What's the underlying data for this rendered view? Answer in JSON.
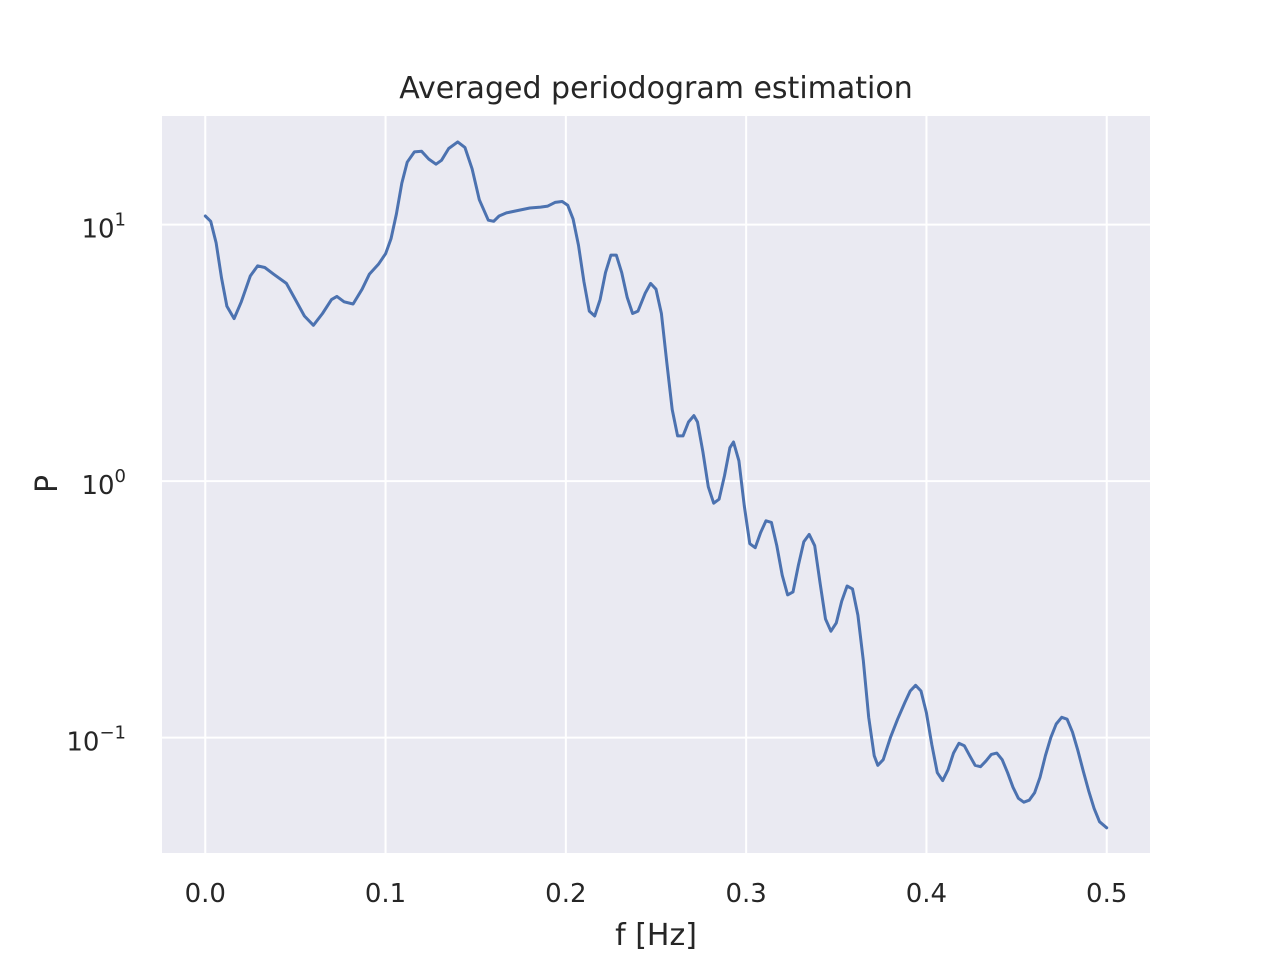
{
  "chart_data": {
    "type": "line",
    "title": "Averaged periodogram estimation",
    "xlabel": "f [Hz]",
    "ylabel": "P",
    "yscale": "log",
    "xlim": [
      -0.024,
      0.524
    ],
    "ylim": [
      0.0355,
      26.5
    ],
    "xticks": [
      0.0,
      0.1,
      0.2,
      0.3,
      0.4,
      0.5
    ],
    "xtick_labels": [
      "0.0",
      "0.1",
      "0.2",
      "0.3",
      "0.4",
      "0.5"
    ],
    "yticks": [
      {
        "value": 0.1,
        "base": "10",
        "exp": "−1"
      },
      {
        "value": 1,
        "base": "10",
        "exp": "0"
      },
      {
        "value": 10,
        "base": "10",
        "exp": "1"
      }
    ],
    "grid": true,
    "colors": {
      "line": "#4c72b0",
      "background": "#eaeaf2",
      "grid": "#ffffff"
    },
    "series": [
      {
        "name": "P",
        "x": [
          0.0,
          0.003,
          0.006,
          0.009,
          0.012,
          0.016,
          0.02,
          0.025,
          0.029,
          0.033,
          0.038,
          0.045,
          0.05,
          0.055,
          0.06,
          0.065,
          0.07,
          0.073,
          0.077,
          0.082,
          0.087,
          0.091,
          0.096,
          0.1,
          0.103,
          0.106,
          0.109,
          0.112,
          0.116,
          0.12,
          0.124,
          0.128,
          0.131,
          0.135,
          0.14,
          0.144,
          0.148,
          0.152,
          0.157,
          0.16,
          0.163,
          0.167,
          0.172,
          0.18,
          0.186,
          0.19,
          0.194,
          0.198,
          0.201,
          0.204,
          0.207,
          0.21,
          0.213,
          0.216,
          0.219,
          0.222,
          0.225,
          0.228,
          0.231,
          0.234,
          0.237,
          0.24,
          0.244,
          0.247,
          0.25,
          0.253,
          0.256,
          0.259,
          0.262,
          0.265,
          0.268,
          0.271,
          0.273,
          0.276,
          0.279,
          0.282,
          0.285,
          0.288,
          0.291,
          0.293,
          0.296,
          0.299,
          0.302,
          0.305,
          0.308,
          0.311,
          0.314,
          0.317,
          0.32,
          0.323,
          0.326,
          0.329,
          0.332,
          0.335,
          0.338,
          0.341,
          0.344,
          0.347,
          0.35,
          0.353,
          0.356,
          0.359,
          0.362,
          0.365,
          0.368,
          0.371,
          0.373,
          0.376,
          0.38,
          0.384,
          0.388,
          0.391,
          0.394,
          0.397,
          0.4,
          0.403,
          0.406,
          0.409,
          0.412,
          0.415,
          0.418,
          0.421,
          0.424,
          0.427,
          0.43,
          0.433,
          0.436,
          0.439,
          0.442,
          0.445,
          0.448,
          0.451,
          0.454,
          0.457,
          0.46,
          0.463,
          0.466,
          0.469,
          0.472,
          0.475,
          0.478,
          0.481,
          0.484,
          0.487,
          0.49,
          0.493,
          0.496,
          0.5
        ],
        "y": [
          10.8,
          10.3,
          8.5,
          6.2,
          4.8,
          4.3,
          5.0,
          6.3,
          6.9,
          6.8,
          6.4,
          5.9,
          5.1,
          4.4,
          4.05,
          4.5,
          5.1,
          5.25,
          5.0,
          4.9,
          5.6,
          6.4,
          7.0,
          7.7,
          8.8,
          11.0,
          14.5,
          17.5,
          19.2,
          19.3,
          18.0,
          17.2,
          17.8,
          19.8,
          21.0,
          20.0,
          16.5,
          12.5,
          10.4,
          10.3,
          10.8,
          11.1,
          11.3,
          11.6,
          11.7,
          11.8,
          12.2,
          12.3,
          11.9,
          10.5,
          8.3,
          6.0,
          4.6,
          4.4,
          5.1,
          6.5,
          7.6,
          7.6,
          6.5,
          5.2,
          4.5,
          4.6,
          5.4,
          5.9,
          5.6,
          4.5,
          2.9,
          1.9,
          1.5,
          1.5,
          1.7,
          1.8,
          1.7,
          1.3,
          0.95,
          0.82,
          0.85,
          1.05,
          1.35,
          1.42,
          1.2,
          0.8,
          0.57,
          0.55,
          0.63,
          0.7,
          0.69,
          0.56,
          0.43,
          0.36,
          0.37,
          0.47,
          0.58,
          0.62,
          0.56,
          0.4,
          0.29,
          0.26,
          0.28,
          0.34,
          0.39,
          0.38,
          0.3,
          0.2,
          0.12,
          0.085,
          0.078,
          0.082,
          0.1,
          0.118,
          0.137,
          0.152,
          0.16,
          0.152,
          0.125,
          0.094,
          0.073,
          0.068,
          0.075,
          0.087,
          0.095,
          0.093,
          0.085,
          0.078,
          0.077,
          0.081,
          0.086,
          0.087,
          0.082,
          0.073,
          0.064,
          0.058,
          0.056,
          0.057,
          0.061,
          0.07,
          0.085,
          0.1,
          0.113,
          0.12,
          0.118,
          0.105,
          0.089,
          0.074,
          0.062,
          0.053,
          0.047,
          0.0445
        ]
      }
    ]
  }
}
